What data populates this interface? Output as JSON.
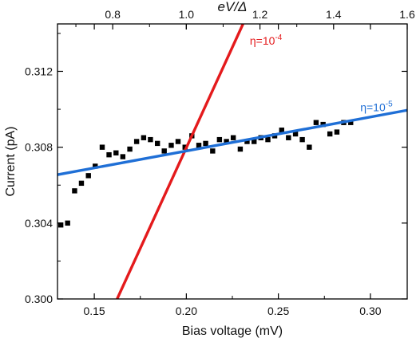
{
  "chart_data": {
    "type": "scatter",
    "xlabel": "Bias voltage (mV)",
    "ylabel": "Current (pA)",
    "top_xlabel": "eV/Δ",
    "xlim": [
      0.13,
      0.32
    ],
    "ylim": [
      0.3,
      0.3145
    ],
    "top_xlim": [
      0.65,
      1.6
    ],
    "x_ticks": [
      0.15,
      0.2,
      0.25,
      0.3
    ],
    "x_tick_labels": [
      "0.15",
      "0.20",
      "0.25",
      "0.30"
    ],
    "y_ticks": [
      0.3,
      0.304,
      0.308,
      0.312
    ],
    "y_tick_labels": [
      "0.300",
      "0.304",
      "0.308",
      "0.312"
    ],
    "top_ticks": [
      0.8,
      1.0,
      1.2,
      1.4,
      1.6
    ],
    "top_tick_labels": [
      "0.8",
      "1.0",
      "1.2",
      "1.4",
      "1.6"
    ],
    "series": [
      {
        "kind": "scatter",
        "marker": "square",
        "color": "#000000",
        "points": [
          [
            0.1318,
            0.3039
          ],
          [
            0.1355,
            0.304
          ],
          [
            0.1393,
            0.3057
          ],
          [
            0.143,
            0.3061
          ],
          [
            0.1468,
            0.3065
          ],
          [
            0.1505,
            0.307
          ],
          [
            0.1543,
            0.308
          ],
          [
            0.158,
            0.3076
          ],
          [
            0.1618,
            0.3077
          ],
          [
            0.1655,
            0.3075
          ],
          [
            0.1693,
            0.3079
          ],
          [
            0.173,
            0.3083
          ],
          [
            0.1768,
            0.3085
          ],
          [
            0.1805,
            0.3084
          ],
          [
            0.1843,
            0.3082
          ],
          [
            0.188,
            0.3078
          ],
          [
            0.1918,
            0.3081
          ],
          [
            0.1955,
            0.3083
          ],
          [
            0.1993,
            0.308
          ],
          [
            0.203,
            0.3086
          ],
          [
            0.2068,
            0.3081
          ],
          [
            0.2105,
            0.3082
          ],
          [
            0.2143,
            0.3078
          ],
          [
            0.218,
            0.3084
          ],
          [
            0.2218,
            0.3083
          ],
          [
            0.2255,
            0.3085
          ],
          [
            0.2293,
            0.3079
          ],
          [
            0.233,
            0.3083
          ],
          [
            0.2368,
            0.3083
          ],
          [
            0.2405,
            0.3085
          ],
          [
            0.2443,
            0.3084
          ],
          [
            0.248,
            0.3086
          ],
          [
            0.2518,
            0.3089
          ],
          [
            0.2555,
            0.3085
          ],
          [
            0.2593,
            0.3087
          ],
          [
            0.263,
            0.3084
          ],
          [
            0.2668,
            0.308
          ],
          [
            0.2705,
            0.3093
          ],
          [
            0.2743,
            0.3092
          ],
          [
            0.278,
            0.3087
          ],
          [
            0.2818,
            0.3088
          ],
          [
            0.2855,
            0.3093
          ],
          [
            0.2893,
            0.3093
          ]
        ]
      },
      {
        "kind": "line",
        "color": "#e41a1c",
        "points": [
          [
            0.1624,
            0.3
          ],
          [
            0.2308,
            0.3145
          ]
        ]
      },
      {
        "kind": "line",
        "color": "#1f6fd6",
        "points": [
          [
            0.13,
            0.30655
          ],
          [
            0.32,
            0.30995
          ]
        ]
      }
    ],
    "annotations": [
      {
        "text_base": "η=10",
        "exponent": "-4",
        "color": "#e41a1c",
        "at": [
          0.2345,
          0.3134
        ]
      },
      {
        "text_base": "η=10",
        "exponent": "-5",
        "color": "#1f6fd6",
        "at": [
          0.2945,
          0.3099
        ]
      }
    ]
  }
}
